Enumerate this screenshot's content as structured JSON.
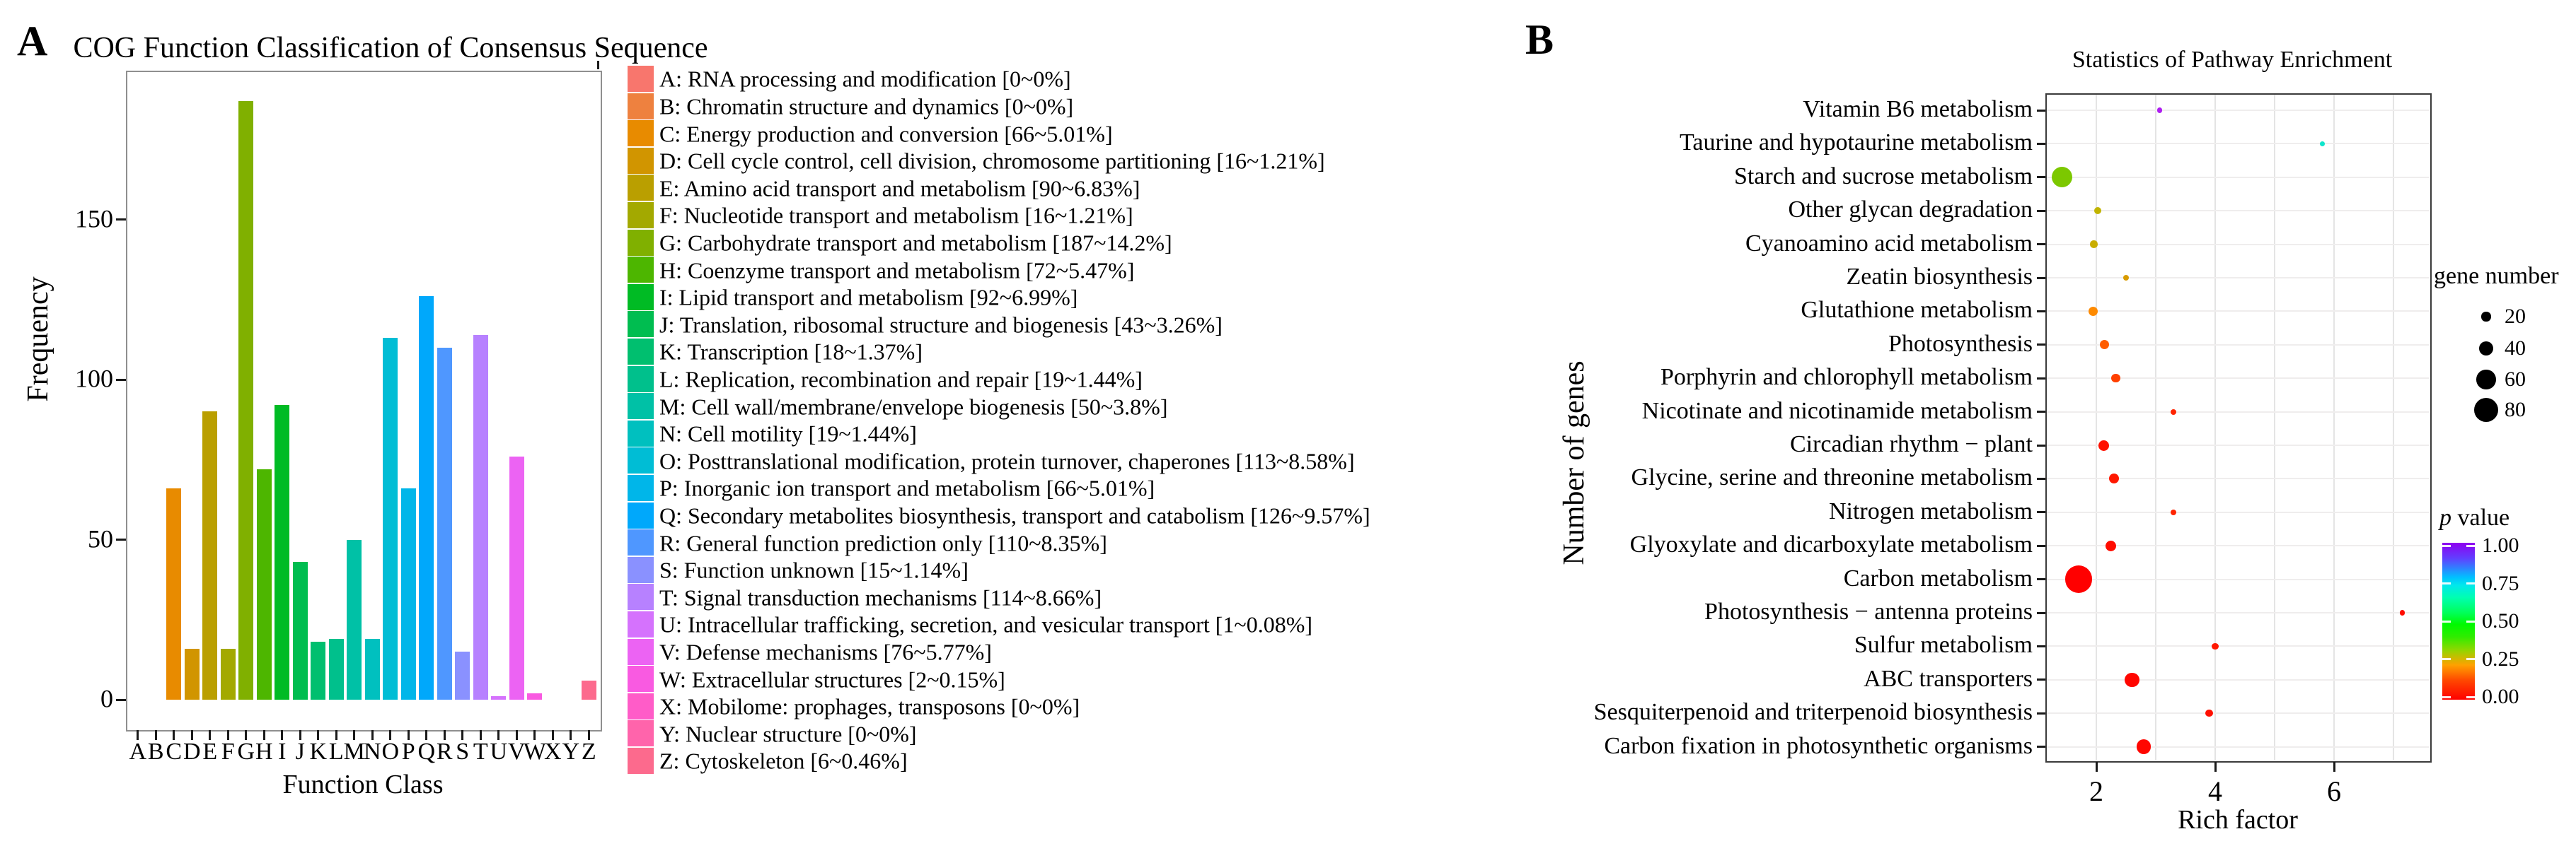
{
  "figure": {
    "panel_a_label": "A",
    "panel_b_label": "B"
  },
  "chart_data": [
    {
      "panel": "A",
      "type": "bar",
      "title": "COG Function Classification of Consensus Sequence",
      "xlabel": "Function Class",
      "ylabel": "Frequency",
      "yticks": [
        0,
        50,
        100,
        150
      ],
      "ylim": [
        0,
        196
      ],
      "grid": false,
      "legend_position": "right",
      "categories": [
        "A",
        "B",
        "C",
        "D",
        "E",
        "F",
        "G",
        "H",
        "I",
        "J",
        "K",
        "L",
        "M",
        "N",
        "O",
        "P",
        "Q",
        "R",
        "S",
        "T",
        "U",
        "V",
        "W",
        "X",
        "Y",
        "Z"
      ],
      "values": [
        0,
        0,
        66,
        16,
        90,
        16,
        187,
        72,
        92,
        43,
        18,
        19,
        50,
        19,
        113,
        66,
        126,
        110,
        15,
        114,
        1,
        76,
        2,
        0,
        0,
        6
      ],
      "colors": [
        "#F8766D",
        "#EE813F",
        "#E88B00",
        "#D19500",
        "#BA9F00",
        "#A3A900",
        "#80B000",
        "#4DB600",
        "#00BB24",
        "#00BD50",
        "#00BF6F",
        "#00C08C",
        "#00C1A6",
        "#00C0BF",
        "#00BDD5",
        "#00B6E9",
        "#00A8FB",
        "#4F97FF",
        "#8A91FF",
        "#B781FF",
        "#D572FD",
        "#EC63F3",
        "#F95AE1",
        "#FF5CC8",
        "#FF64AB",
        "#FC6A8D"
      ],
      "legend_items": [
        "A: RNA processing and modification [0~0%]",
        "B: Chromatin structure and dynamics [0~0%]",
        "C: Energy production and conversion [66~5.01%]",
        "D: Cell cycle control, cell division, chromosome partitioning [16~1.21%]",
        "E: Amino acid transport and metabolism [90~6.83%]",
        "F: Nucleotide transport and metabolism [16~1.21%]",
        "G: Carbohydrate transport and metabolism [187~14.2%]",
        "H: Coenzyme transport and metabolism [72~5.47%]",
        "I: Lipid transport and metabolism [92~6.99%]",
        "J: Translation, ribosomal structure and biogenesis [43~3.26%]",
        "K: Transcription [18~1.37%]",
        "L: Replication, recombination and repair [19~1.44%]",
        "M: Cell wall/membrane/envelope biogenesis [50~3.8%]",
        "N: Cell motility [19~1.44%]",
        "O: Posttranslational modification, protein turnover, chaperones [113~8.58%]",
        "P: Inorganic ion transport and metabolism [66~5.01%]",
        "Q: Secondary metabolites biosynthesis, transport and catabolism [126~9.57%]",
        "R: General function prediction only [110~8.35%]",
        "S: Function unknown [15~1.14%]",
        "T: Signal transduction mechanisms [114~8.66%]",
        "U: Intracellular trafficking, secretion, and vesicular transport [1~0.08%]",
        "V: Defense mechanisms [76~5.77%]",
        "W: Extracellular structures [2~0.15%]",
        "X: Mobilome: prophages, transposons [0~0%]",
        "Y: Nuclear structure [0~0%]",
        "Z: Cytoskeleton [6~0.46%]"
      ]
    },
    {
      "panel": "B",
      "type": "scatter",
      "title": "Statistics of Pathway Enrichment",
      "xlabel": "Rich factor",
      "ylabel": "Number of genes",
      "xticks": [
        2,
        4,
        6
      ],
      "xlim": [
        1.15,
        7.65
      ],
      "grid": true,
      "size_legend": {
        "title": "gene number",
        "sizes": [
          20,
          40,
          60,
          80
        ]
      },
      "color_legend": {
        "title_italic": "p",
        "title_rest": " value",
        "ticks": [
          "1.00",
          "0.75",
          "0.50",
          "0.25",
          "0.00"
        ],
        "gradient": [
          {
            "color": "#8F00F0",
            "pos": 0
          },
          {
            "color": "#6040FF",
            "pos": 10
          },
          {
            "color": "#00C0FF",
            "pos": 22
          },
          {
            "color": "#00E8EC",
            "pos": 27
          },
          {
            "color": "#00FFB0",
            "pos": 35
          },
          {
            "color": "#00FF55",
            "pos": 45
          },
          {
            "color": "#00FA00",
            "pos": 52
          },
          {
            "color": "#30EC00",
            "pos": 60
          },
          {
            "color": "#8CD800",
            "pos": 68
          },
          {
            "color": "#C8BC00",
            "pos": 73
          },
          {
            "color": "#FFA000",
            "pos": 78
          },
          {
            "color": "#FF4500",
            "pos": 88
          },
          {
            "color": "#FF0000",
            "pos": 100
          }
        ]
      },
      "points": [
        {
          "pathway": "Vitamin B6 metabolism",
          "rich_factor": 3.06,
          "gene_number": 3,
          "p_value": 0.95,
          "color": "#AE1EF0"
        },
        {
          "pathway": "Taurine and hypotaurine metabolism",
          "rich_factor": 5.8,
          "gene_number": 2,
          "p_value": 0.65,
          "color": "#10E5CC"
        },
        {
          "pathway": "Starch and sucrose metabolism",
          "rich_factor": 1.42,
          "gene_number": 65,
          "p_value": 0.3,
          "color": "#7CC800"
        },
        {
          "pathway": "Other glycan degradation",
          "rich_factor": 2.02,
          "gene_number": 12,
          "p_value": 0.27,
          "color": "#C1B400"
        },
        {
          "pathway": "Cyanoamino acid metabolism",
          "rich_factor": 1.96,
          "gene_number": 12,
          "p_value": 0.25,
          "color": "#C9AD00"
        },
        {
          "pathway": "Zeatin biosynthesis",
          "rich_factor": 2.5,
          "gene_number": 8,
          "p_value": 0.21,
          "color": "#D89B00"
        },
        {
          "pathway": "Glutathione metabolism",
          "rich_factor": 1.95,
          "gene_number": 20,
          "p_value": 0.13,
          "color": "#FE8A00"
        },
        {
          "pathway": "Photosynthesis",
          "rich_factor": 2.14,
          "gene_number": 20,
          "p_value": 0.09,
          "color": "#FF5D00"
        },
        {
          "pathway": "Porphyrin and chlorophyll metabolism",
          "rich_factor": 2.33,
          "gene_number": 18,
          "p_value": 0.07,
          "color": "#FF4000"
        },
        {
          "pathway": "Nicotinate and nicotinamide metabolism",
          "rich_factor": 3.3,
          "gene_number": 6,
          "p_value": 0.05,
          "color": "#FF2400"
        },
        {
          "pathway": "Circadian rhythm − plant",
          "rich_factor": 2.12,
          "gene_number": 25,
          "p_value": 0.02,
          "color": "#FF1000"
        },
        {
          "pathway": "Glycine, serine and threonine metabolism",
          "rich_factor": 2.3,
          "gene_number": 22,
          "p_value": 0.03,
          "color": "#FF1800"
        },
        {
          "pathway": "Nitrogen metabolism",
          "rich_factor": 3.3,
          "gene_number": 6,
          "p_value": 0.05,
          "color": "#FF2400"
        },
        {
          "pathway": "Glyoxylate and dicarboxylate metabolism",
          "rich_factor": 2.24,
          "gene_number": 25,
          "p_value": 0.02,
          "color": "#FF0C00"
        },
        {
          "pathway": "Carbon metabolism",
          "rich_factor": 1.7,
          "gene_number": 90,
          "p_value": 0.001,
          "color": "#FF0000"
        },
        {
          "pathway": "Photosynthesis − antenna proteins",
          "rich_factor": 7.15,
          "gene_number": 3,
          "p_value": 0.02,
          "color": "#FF0C00"
        },
        {
          "pathway": "Sulfur metabolism",
          "rich_factor": 4.0,
          "gene_number": 10,
          "p_value": 0.03,
          "color": "#FF1800"
        },
        {
          "pathway": "ABC transporters",
          "rich_factor": 2.6,
          "gene_number": 40,
          "p_value": 0.01,
          "color": "#FF0600"
        },
        {
          "pathway": "Sesquiterpenoid and triterpenoid biosynthesis",
          "rich_factor": 3.9,
          "gene_number": 12,
          "p_value": 0.02,
          "color": "#FF1000"
        },
        {
          "pathway": "Carbon fixation in photosynthetic organisms",
          "rich_factor": 2.8,
          "gene_number": 40,
          "p_value": 0.01,
          "color": "#FF0600"
        }
      ]
    }
  ]
}
